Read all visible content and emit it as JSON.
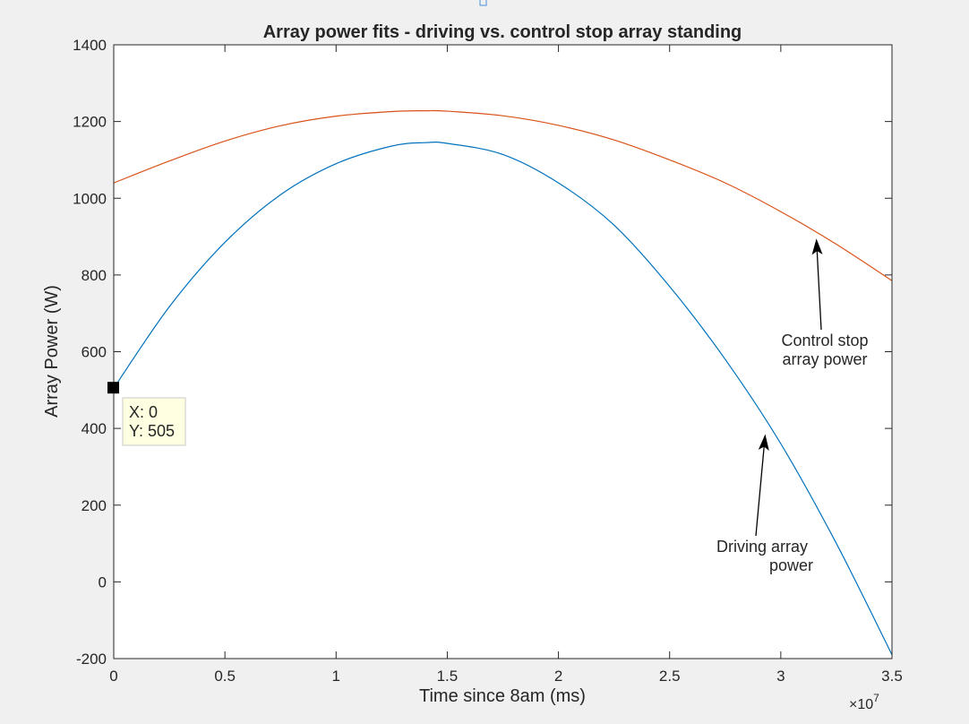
{
  "chart_data": {
    "type": "line",
    "title": "Array power fits - driving vs. control stop array standing",
    "xlabel": "Time since 8am (ms)",
    "ylabel": "Array Power (W)",
    "x_exponent_label": "×10",
    "x_exponent_power": "7",
    "xlim": [
      0,
      35000000
    ],
    "ylim": [
      -200,
      1400
    ],
    "x_ticks": [
      0,
      5000000,
      10000000,
      15000000,
      20000000,
      25000000,
      30000000,
      35000000
    ],
    "x_tick_labels": [
      "0",
      "0.5",
      "1",
      "1.5",
      "2",
      "2.5",
      "3",
      "3.5"
    ],
    "y_ticks": [
      -200,
      0,
      200,
      400,
      600,
      800,
      1000,
      1200,
      1400
    ],
    "y_tick_labels": [
      "-200",
      "0",
      "200",
      "400",
      "600",
      "800",
      "1000",
      "1200",
      "1400"
    ],
    "grid": false,
    "series": [
      {
        "color": "#0072bd",
        "x": [
          0,
          2500000,
          5000000,
          7500000,
          10000000,
          12500000,
          14000000,
          15000000,
          17500000,
          20000000,
          22500000,
          25000000,
          27500000,
          30000000,
          32500000,
          35000000
        ],
        "y": [
          505,
          717,
          885,
          1009,
          1090,
          1136,
          1145,
          1143,
          1114,
          1040,
          930,
          770,
          580,
          360,
          100,
          -190
        ]
      },
      {
        "color": "#d95319",
        "x": [
          0,
          2500000,
          5000000,
          7500000,
          10000000,
          12500000,
          14000000,
          15000000,
          17500000,
          20000000,
          22500000,
          25000000,
          27500000,
          30000000,
          32500000,
          35000000
        ],
        "y": [
          1040,
          1097,
          1149,
          1189,
          1214,
          1226,
          1228,
          1227,
          1215,
          1190,
          1152,
          1100,
          1040,
          965,
          880,
          785
        ]
      }
    ],
    "annotations": [
      {
        "lines": [
          "Control stop",
          "array power"
        ],
        "arrow_to": [
          31600000,
          895
        ]
      },
      {
        "lines": [
          "Driving array",
          "power"
        ],
        "arrow_to": [
          29300000,
          385
        ]
      }
    ],
    "datatip": {
      "x_label": "X: 0",
      "y_label": "Y: 505",
      "point": [
        0,
        505
      ]
    }
  }
}
